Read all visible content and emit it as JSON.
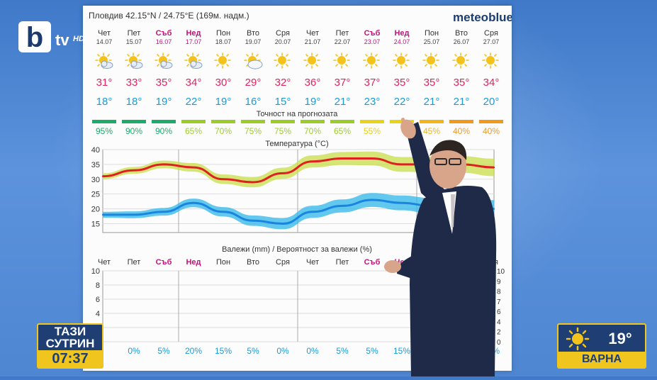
{
  "channel": {
    "logo_letter": "b",
    "logo_text": "tv",
    "logo_hd": "HD"
  },
  "forecast": {
    "location": "Пловдив  42.15°N / 24.75°E (169м. надм.)",
    "provider": "meteoblue",
    "days": [
      {
        "dow": "Чет",
        "date": "14.07",
        "weekend": false,
        "icon": "partly-cloudy-icon",
        "tmax": "31°",
        "tmin": "18°",
        "acc": "95%",
        "acc_color": "#1bab6a"
      },
      {
        "dow": "Пет",
        "date": "15.07",
        "weekend": false,
        "icon": "partly-cloudy-icon",
        "tmax": "33°",
        "tmin": "18°",
        "acc": "90%",
        "acc_color": "#1bab6a"
      },
      {
        "dow": "Съб",
        "date": "16.07",
        "weekend": true,
        "icon": "partly-cloudy-icon",
        "tmax": "35°",
        "tmin": "19°",
        "acc": "90%",
        "acc_color": "#1bab6a"
      },
      {
        "dow": "Нед",
        "date": "17.07",
        "weekend": true,
        "icon": "partly-cloudy-icon",
        "tmax": "34°",
        "tmin": "22°",
        "acc": "65%",
        "acc_color": "#9ccc2c"
      },
      {
        "dow": "Пон",
        "date": "18.07",
        "weekend": false,
        "icon": "sun-icon",
        "tmax": "30°",
        "tmin": "19°",
        "acc": "70%",
        "acc_color": "#9ccc2c"
      },
      {
        "dow": "Вто",
        "date": "19.07",
        "weekend": false,
        "icon": "cloud-sun-icon",
        "tmax": "29°",
        "tmin": "16°",
        "acc": "75%",
        "acc_color": "#9ccc2c"
      },
      {
        "dow": "Сря",
        "date": "20.07",
        "weekend": false,
        "icon": "sun-icon",
        "tmax": "32°",
        "tmin": "15°",
        "acc": "75%",
        "acc_color": "#9ccc2c"
      },
      {
        "dow": "Чет",
        "date": "21.07",
        "weekend": false,
        "icon": "sun-icon",
        "tmax": "36°",
        "tmin": "19°",
        "acc": "70%",
        "acc_color": "#9ccc2c"
      },
      {
        "dow": "Пет",
        "date": "22.07",
        "weekend": false,
        "icon": "sun-icon",
        "tmax": "37°",
        "tmin": "21°",
        "acc": "65%",
        "acc_color": "#9ccc2c"
      },
      {
        "dow": "Съб",
        "date": "23.07",
        "weekend": true,
        "icon": "sun-icon",
        "tmax": "37°",
        "tmin": "23°",
        "acc": "55%",
        "acc_color": "#e7d21c"
      },
      {
        "dow": "Нед",
        "date": "24.07",
        "weekend": true,
        "icon": "sun-icon",
        "tmax": "35°",
        "tmin": "22°",
        "acc": "",
        "acc_color": "#e7d21c"
      },
      {
        "dow": "Пон",
        "date": "25.07",
        "weekend": false,
        "icon": "sun-icon",
        "tmax": "35°",
        "tmin": "21°",
        "acc": "45%",
        "acc_color": "#f2b51c"
      },
      {
        "dow": "Вто",
        "date": "26.07",
        "weekend": false,
        "icon": "sun-icon",
        "tmax": "35°",
        "tmin": "21°",
        "acc": "40%",
        "acc_color": "#f09a1c"
      },
      {
        "dow": "Сря",
        "date": "27.07",
        "weekend": false,
        "icon": "sun-icon",
        "tmax": "34°",
        "tmin": "20°",
        "acc": "40%",
        "acc_color": "#f09a1c"
      }
    ],
    "accuracy_title": "Точност на прогнозата",
    "temp_title": "Температура (°C)",
    "precip_title": "Валежи (mm) / Вероятност за валежи (%)",
    "precip_probability": [
      "",
      "0%",
      "5%",
      "20%",
      "15%",
      "5%",
      "0%",
      "0%",
      "5%",
      "5%",
      "15%",
      "",
      "",
      "20%"
    ]
  },
  "chart_data": [
    {
      "type": "line",
      "title": "Температура (°C)",
      "x": [
        "Чет",
        "Пет",
        "Съб",
        "Нед",
        "Пон",
        "Вто",
        "Сря",
        "Чет",
        "Пет",
        "Съб",
        "Нед",
        "Пон",
        "Вто",
        "Сря"
      ],
      "ylim": [
        12,
        40
      ],
      "yticks": [
        15,
        20,
        25,
        30,
        35,
        40
      ],
      "series": [
        {
          "values": [
            31,
            33,
            35,
            34,
            30,
            29,
            32,
            36,
            37,
            37,
            35,
            35,
            35,
            34
          ],
          "color": "#e02020",
          "band_color": "#c9df4a"
        },
        {
          "values": [
            18,
            18,
            19,
            22,
            19,
            16,
            15,
            19,
            21,
            23,
            22,
            21,
            21,
            20
          ],
          "color": "#1a85e0",
          "band_color": "#2fb7ea"
        }
      ]
    },
    {
      "type": "bar",
      "title": "Валежи (mm) / Вероятност за валежи (%)",
      "categories": [
        "Чет",
        "Пет",
        "Съб",
        "Нед",
        "Пон",
        "Вто",
        "Сря",
        "Чет",
        "Пет",
        "Съб",
        "Нед",
        "Пон",
        "Вто",
        "Сря"
      ],
      "ylim": [
        0,
        10
      ],
      "yticks_left": [
        0,
        2,
        4,
        6,
        8,
        10
      ],
      "yticks_right": [
        "0",
        "2",
        "4",
        "6",
        "7",
        "8",
        "9",
        "10"
      ],
      "values": [
        0,
        0,
        0,
        0,
        0,
        0,
        0,
        0,
        0,
        0,
        0,
        0,
        0,
        0
      ]
    }
  ],
  "badges": {
    "show_line1": "ТАЗИ",
    "show_line2": "СУТРИН",
    "time": "07:37",
    "weather_temp": "19°",
    "weather_city": "ВАРНА"
  },
  "colors": {
    "weekend": "#c0147a",
    "max_temp": "#e0245e",
    "min_temp": "#1a9ad6",
    "accent_badge": "#f0c51e"
  }
}
